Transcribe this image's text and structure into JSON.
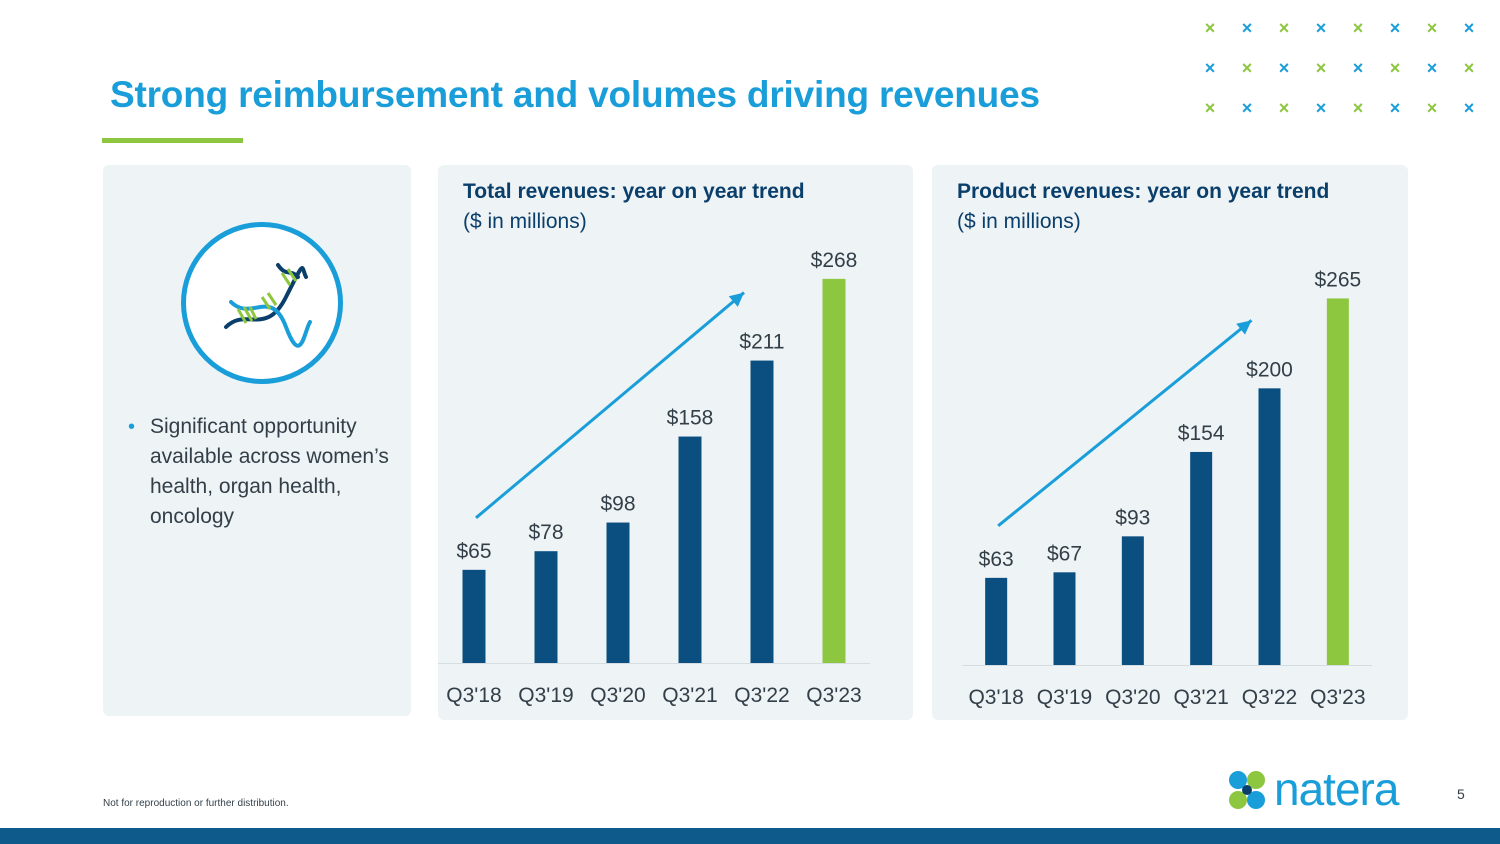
{
  "slide": {
    "title": "Strong reimbursement and volumes driving revenues",
    "page_number": "5",
    "footer_note": "Not for reproduction or further distribution.",
    "logo_text": "natera"
  },
  "left_panel": {
    "icon": "dna-icon",
    "bullet": "Significant opportunity available across women’s health, organ health, oncology"
  },
  "colors": {
    "accent_blue": "#1a9ed9",
    "bar_navy": "#0b4f80",
    "bar_navy_2": "#0a4a7f",
    "bar_green": "#8dc63f",
    "title_navy": "#0b3f6b"
  },
  "chart_data": [
    {
      "type": "bar",
      "title": "Total revenues: year on year trend",
      "subtitle": "($ in millions)",
      "categories": [
        "Q3'18",
        "Q3'19",
        "Q3'20",
        "Q3'21",
        "Q3'22",
        "Q3'23"
      ],
      "values": [
        65,
        78,
        98,
        158,
        211,
        268
      ],
      "data_labels": [
        "$65",
        "$78",
        "$98",
        "$158",
        "$211",
        "$268"
      ],
      "ylim": [
        0,
        300
      ],
      "highlight_last": true,
      "trend_arrow": true
    },
    {
      "type": "bar",
      "title": "Product revenues: year on year trend",
      "subtitle": "($ in millions)",
      "categories": [
        "Q3'18",
        "Q3'19",
        "Q3'20",
        "Q3'21",
        "Q3'22",
        "Q3'23"
      ],
      "values": [
        63,
        67,
        93,
        154,
        200,
        265
      ],
      "data_labels": [
        "$63",
        "$67",
        "$93",
        "$154",
        "$200",
        "$265"
      ],
      "ylim": [
        0,
        300
      ],
      "highlight_last": true,
      "trend_arrow": true
    }
  ]
}
